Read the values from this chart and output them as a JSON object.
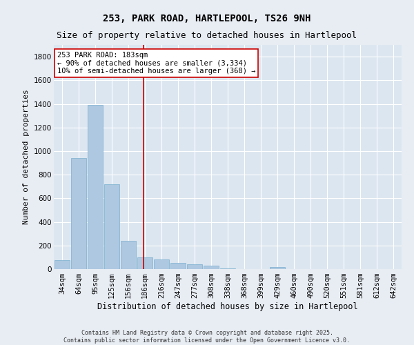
{
  "title_line1": "253, PARK ROAD, HARTLEPOOL, TS26 9NH",
  "title_line2": "Size of property relative to detached houses in Hartlepool",
  "xlabel": "Distribution of detached houses by size in Hartlepool",
  "ylabel": "Number of detached properties",
  "bar_color": "#adc8e0",
  "bar_edge_color": "#7aafd0",
  "vline_color": "#cc0000",
  "categories": [
    "34sqm",
    "64sqm",
    "95sqm",
    "125sqm",
    "156sqm",
    "186sqm",
    "216sqm",
    "247sqm",
    "277sqm",
    "308sqm",
    "338sqm",
    "368sqm",
    "399sqm",
    "429sqm",
    "460sqm",
    "490sqm",
    "520sqm",
    "551sqm",
    "581sqm",
    "612sqm",
    "642sqm"
  ],
  "values": [
    75,
    940,
    1390,
    720,
    240,
    100,
    80,
    55,
    40,
    30,
    5,
    0,
    0,
    20,
    0,
    0,
    0,
    0,
    0,
    0,
    0
  ],
  "ylim": [
    0,
    1900
  ],
  "yticks": [
    0,
    200,
    400,
    600,
    800,
    1000,
    1200,
    1400,
    1600,
    1800
  ],
  "annotation_text": "253 PARK ROAD: 183sqm\n← 90% of detached houses are smaller (3,334)\n10% of semi-detached houses are larger (368) →",
  "annotation_box_color": "#ffffff",
  "annotation_box_edge": "#cc0000",
  "bg_color": "#e8edf4",
  "plot_bg_color": "#dce6f0",
  "footnote": "Contains HM Land Registry data © Crown copyright and database right 2025.\nContains public sector information licensed under the Open Government Licence v3.0.",
  "title_fontsize": 10,
  "subtitle_fontsize": 9,
  "tick_fontsize": 7.5,
  "label_fontsize": 8.5,
  "annotation_fontsize": 7.5,
  "ylabel_fontsize": 8
}
